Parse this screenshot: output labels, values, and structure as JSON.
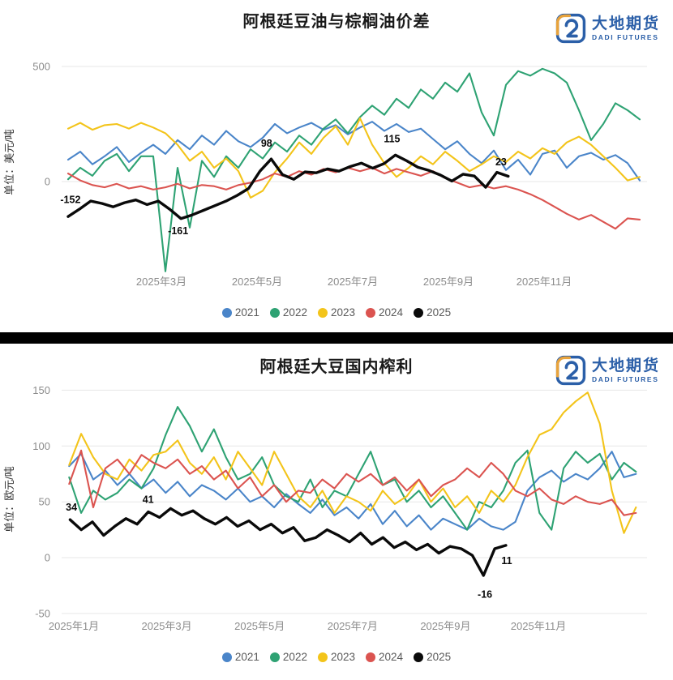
{
  "charts": [
    {
      "title": "阿根廷豆油与棕榈油价差",
      "unit_label": "单位：美元/吨",
      "logo": {
        "name_cn": "大地期货",
        "name_en": "DADI FUTURES"
      },
      "chart_data": {
        "type": "line",
        "title": "阿根廷豆油与棕榈油价差",
        "ylabel": "单位：美元/吨",
        "grid": "horizontal-only",
        "legend_position": "bottom",
        "x_axis": {
          "tick_months": [
            3,
            5,
            7,
            9,
            11
          ],
          "tick_labels": [
            "2025年3月",
            "2025年5月",
            "2025年7月",
            "2025年9月",
            "2025年11月"
          ]
        },
        "y_axis": {
          "ticks": [
            {
              "value": 500,
              "label": "500"
            },
            {
              "value": 0,
              "label": "0"
            }
          ],
          "ylim": [
            -400,
            545
          ]
        },
        "series": [
          {
            "name": "2021",
            "color": "#4A85C9",
            "month_start": 1.05,
            "month_end": 13.0,
            "values": [
              95,
              130,
              75,
              110,
              150,
              85,
              125,
              160,
              120,
              180,
              140,
              200,
              160,
              220,
              175,
              150,
              190,
              250,
              210,
              235,
              255,
              225,
              245,
              205,
              235,
              260,
              220,
              250,
              215,
              230,
              185,
              140,
              175,
              120,
              80,
              135,
              50,
              95,
              30,
              120,
              135,
              60,
              110,
              125,
              95,
              115,
              80,
              5
            ]
          },
          {
            "name": "2022",
            "color": "#2EA273",
            "month_start": 1.05,
            "month_end": 13.0,
            "values": [
              10,
              60,
              25,
              90,
              120,
              45,
              110,
              110,
              -390,
              60,
              -200,
              90,
              20,
              110,
              60,
              140,
              100,
              170,
              130,
              200,
              160,
              230,
              270,
              210,
              280,
              330,
              290,
              360,
              320,
              400,
              360,
              430,
              390,
              470,
              300,
              200,
              420,
              480,
              460,
              490,
              470,
              430,
              310,
              180,
              250,
              340,
              310,
              270
            ]
          },
          {
            "name": "2023",
            "color": "#F3C41A",
            "month_start": 1.05,
            "month_end": 13.0,
            "values": [
              230,
              255,
              225,
              245,
              250,
              230,
              255,
              235,
              210,
              160,
              90,
              130,
              60,
              100,
              45,
              -70,
              -40,
              40,
              100,
              170,
              120,
              190,
              240,
              160,
              275,
              160,
              80,
              20,
              60,
              110,
              75,
              130,
              90,
              45,
              75,
              110,
              85,
              130,
              100,
              145,
              120,
              170,
              195,
              160,
              110,
              60,
              5,
              20
            ]
          },
          {
            "name": "2024",
            "color": "#DB5450",
            "month_start": 1.05,
            "month_end": 13.0,
            "values": [
              35,
              5,
              -15,
              -25,
              -10,
              -30,
              -20,
              -35,
              -25,
              -10,
              -30,
              -15,
              -20,
              -35,
              -15,
              -5,
              10,
              35,
              20,
              45,
              30,
              55,
              40,
              60,
              45,
              60,
              35,
              55,
              40,
              25,
              45,
              15,
              -5,
              -25,
              -15,
              -30,
              -20,
              -35,
              -55,
              -80,
              -110,
              -140,
              -165,
              -145,
              -175,
              -205,
              -160,
              -165
            ]
          },
          {
            "name": "2025",
            "color": "#0A0A0A",
            "month_start": 1.05,
            "month_end": 10.25,
            "values": [
              -152,
              -120,
              -85,
              -95,
              -110,
              -92,
              -80,
              -100,
              -85,
              -120,
              -161,
              -145,
              -125,
              -105,
              -85,
              -60,
              -30,
              45,
              98,
              30,
              10,
              42,
              38,
              55,
              45,
              65,
              80,
              58,
              78,
              115,
              90,
              62,
              48,
              28,
              2,
              32,
              24,
              -25,
              40,
              23
            ]
          }
        ],
        "annotations": [
          {
            "text": "-152",
            "month": 1.1,
            "value": -80
          },
          {
            "text": "-161",
            "month": 3.35,
            "value": -215
          },
          {
            "text": "98",
            "month": 5.2,
            "value": 165
          },
          {
            "text": "115",
            "month": 7.82,
            "value": 185
          },
          {
            "text": "23",
            "month": 10.1,
            "value": 85
          }
        ]
      }
    },
    {
      "title": "阿根廷大豆国内榨利",
      "unit_label": "单位：欧元/吨",
      "logo": {
        "name_cn": "大地期货",
        "name_en": "DADI FUTURES"
      },
      "chart_data": {
        "type": "line",
        "title": "阿根廷大豆国内榨利",
        "ylabel": "单位：欧元/吨",
        "grid": "horizontal-only",
        "legend_position": "bottom",
        "x_axis": {
          "tick_months": [
            1,
            3,
            5,
            7,
            9,
            11
          ],
          "tick_labels": [
            "2025年1月",
            "2025年3月",
            "2025年5月",
            "2025年7月",
            "2025年9月",
            "2025年11月"
          ]
        },
        "y_axis": {
          "ticks": [
            {
              "value": 150,
              "label": "150"
            },
            {
              "value": 100,
              "label": "100"
            },
            {
              "value": 50,
              "label": "50"
            },
            {
              "value": 0,
              "label": "0"
            },
            {
              "value": -50,
              "label": "-50"
            }
          ],
          "ylim": [
            -54,
            169
          ]
        },
        "series": [
          {
            "name": "2021",
            "color": "#4A85C9",
            "month_start": 0.9,
            "month_end": 13.1,
            "values": [
              82,
              93,
              70,
              78,
              65,
              75,
              62,
              70,
              58,
              68,
              55,
              65,
              60,
              52,
              62,
              50,
              55,
              45,
              57,
              48,
              40,
              52,
              38,
              45,
              35,
              48,
              30,
              42,
              28,
              38,
              25,
              35,
              30,
              25,
              35,
              28,
              25,
              32,
              60,
              72,
              78,
              68,
              75,
              70,
              80,
              95,
              72,
              75
            ]
          },
          {
            "name": "2022",
            "color": "#2EA273",
            "month_start": 0.9,
            "month_end": 13.1,
            "values": [
              72,
              40,
              60,
              52,
              58,
              70,
              62,
              80,
              110,
              135,
              118,
              95,
              115,
              90,
              70,
              75,
              90,
              65,
              55,
              50,
              70,
              45,
              60,
              55,
              75,
              95,
              65,
              70,
              50,
              60,
              45,
              55,
              40,
              25,
              50,
              45,
              60,
              85,
              96,
              40,
              25,
              80,
              95,
              85,
              93,
              70,
              85,
              77
            ]
          },
          {
            "name": "2023",
            "color": "#F3C41A",
            "month_start": 0.9,
            "month_end": 13.1,
            "values": [
              83,
              111,
              90,
              75,
              70,
              88,
              78,
              92,
              95,
              105,
              85,
              75,
              90,
              70,
              95,
              80,
              65,
              95,
              75,
              55,
              45,
              60,
              40,
              55,
              50,
              42,
              60,
              48,
              55,
              70,
              50,
              62,
              45,
              55,
              40,
              60,
              50,
              65,
              90,
              110,
              115,
              130,
              140,
              148,
              120,
              60,
              22,
              45
            ]
          },
          {
            "name": "2024",
            "color": "#DB5450",
            "month_start": 0.9,
            "month_end": 13.1,
            "values": [
              66,
              96,
              45,
              80,
              88,
              75,
              92,
              85,
              80,
              88,
              75,
              82,
              70,
              78,
              62,
              72,
              55,
              65,
              50,
              60,
              58,
              70,
              62,
              75,
              68,
              75,
              65,
              72,
              60,
              70,
              55,
              65,
              70,
              80,
              72,
              85,
              75,
              60,
              55,
              62,
              52,
              48,
              55,
              50,
              48,
              52,
              38,
              40
            ]
          },
          {
            "name": "2025",
            "color": "#0A0A0A",
            "month_start": 0.92,
            "month_end": 10.3,
            "values": [
              34,
              25,
              32,
              20,
              28,
              35,
              30,
              41,
              36,
              44,
              38,
              42,
              35,
              30,
              36,
              28,
              33,
              25,
              30,
              22,
              27,
              15,
              18,
              25,
              20,
              14,
              22,
              12,
              18,
              9,
              14,
              7,
              12,
              4,
              10,
              8,
              2,
              -16,
              8,
              11
            ]
          }
        ],
        "annotations": [
          {
            "text": "34",
            "month": 0.95,
            "value": 45
          },
          {
            "text": "41",
            "month": 2.6,
            "value": 52
          },
          {
            "text": "-16",
            "month": 9.85,
            "value": -33
          },
          {
            "text": "11",
            "month": 10.32,
            "value": -3
          }
        ]
      }
    }
  ]
}
